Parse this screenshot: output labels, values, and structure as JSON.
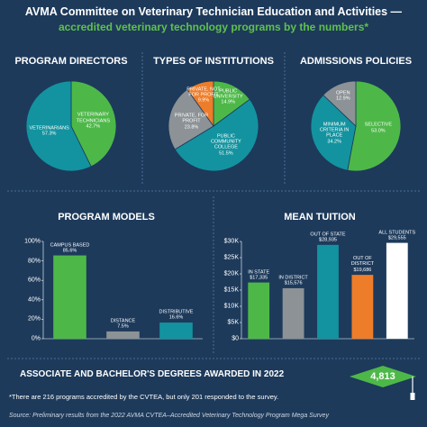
{
  "header": {
    "title": "AVMA Committee on Veterinary Technician Education and Activities —",
    "subtitle": "accredited veterinary technology programs by the numbers*"
  },
  "chart_data": [
    {
      "type": "pie",
      "title": "PROGRAM DIRECTORS",
      "categories": [
        "VETERINARY TECHNICIANS",
        "VETERINARIANS"
      ],
      "values": [
        42.7,
        57.3
      ],
      "value_labels": [
        "42.7%",
        "57.3%"
      ],
      "colors": [
        "#4db848",
        "#13939f"
      ]
    },
    {
      "type": "pie",
      "title": "TYPES OF INSTITUTIONS",
      "categories": [
        "PUBLIC UNIVERSITY",
        "PUBLIC COMMUNITY COLLEGE",
        "PRIVATE, FOR PROFIT",
        "PRIVATE, NOT FOR PROFIT"
      ],
      "values": [
        14.9,
        51.5,
        23.8,
        9.9
      ],
      "value_labels": [
        "14.9%",
        "51.5%",
        "23.8%",
        "9.9%"
      ],
      "colors": [
        "#4db848",
        "#13939f",
        "#8c9296",
        "#ee7d2a"
      ]
    },
    {
      "type": "pie",
      "title": "ADMISSIONS POLICIES",
      "categories": [
        "SELECTIVE",
        "MINIMUM CRITERIA IN PLACE",
        "OPEN"
      ],
      "values": [
        53.0,
        34.2,
        12.9
      ],
      "value_labels": [
        "53.0%",
        "34.2%",
        "12.9%"
      ],
      "colors": [
        "#4db848",
        "#13939f",
        "#8c9296"
      ]
    },
    {
      "type": "bar",
      "title": "PROGRAM MODELS",
      "categories": [
        "CAMPUS BASED",
        "DISTANCE",
        "DISTRIBUTIVE"
      ],
      "values": [
        85.6,
        7.5,
        16.6
      ],
      "value_labels": [
        "85.6%",
        "7.5%",
        "16.6%"
      ],
      "colors": [
        "#4db848",
        "#8c9296",
        "#13939f"
      ],
      "ylim": [
        0,
        100
      ],
      "yticks": [
        {
          "value": 0,
          "label": "0%"
        },
        {
          "value": 20,
          "label": "20%"
        },
        {
          "value": 40,
          "label": "40%"
        },
        {
          "value": 60,
          "label": "60%"
        },
        {
          "value": 80,
          "label": "80%"
        },
        {
          "value": 100,
          "label": "100%"
        }
      ]
    },
    {
      "type": "bar",
      "title": "MEAN TUITION",
      "categories": [
        "IN STATE",
        "IN DISTRICT",
        "OUT OF STATE",
        "OUT OF DISTRICT",
        "ALL STUDENTS"
      ],
      "values": [
        17335,
        15576,
        28935,
        19686,
        29555
      ],
      "value_labels": [
        "$17,335",
        "$15,576",
        "$28,935",
        "$19,686",
        "$29,555"
      ],
      "colors": [
        "#4db848",
        "#8c9296",
        "#13939f",
        "#ee7d2a",
        "#ffffff"
      ],
      "ylim": [
        0,
        30000
      ],
      "yticks": [
        {
          "value": 0,
          "label": "$0"
        },
        {
          "value": 5000,
          "label": "$5K"
        },
        {
          "value": 10000,
          "label": "$10K"
        },
        {
          "value": 15000,
          "label": "$15K"
        },
        {
          "value": 20000,
          "label": "$20K"
        },
        {
          "value": 25000,
          "label": "$25K"
        },
        {
          "value": 30000,
          "label": "$30K"
        }
      ]
    }
  ],
  "degrees": {
    "title": "ASSOCIATE AND BACHELOR'S DEGREES AWARDED IN 2022",
    "count": "4,813"
  },
  "footnote": "*There are 216 programs accredited by the CVTEA, but only 201 responded to the survey.",
  "source": "Source: Preliminary results from the 2022 AVMA CVTEA–Accredited Veterinary Technology Program Mega Survey"
}
